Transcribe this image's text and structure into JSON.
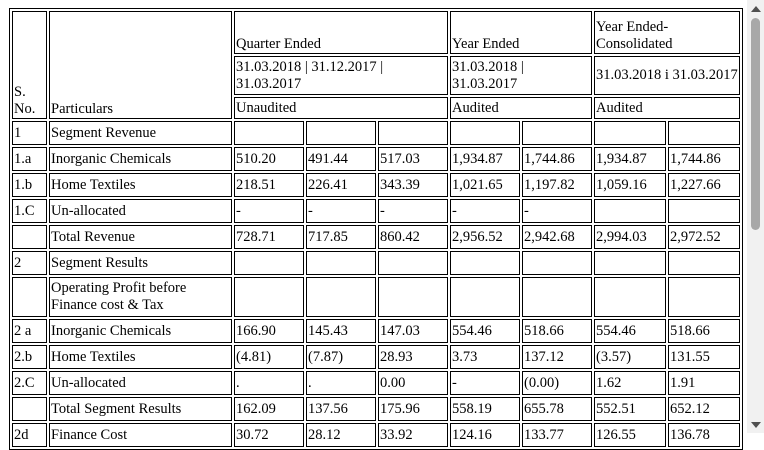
{
  "header": {
    "sno": "S. No.",
    "particulars": "Particulars",
    "quarter_ended": "Quarter Ended",
    "quarter_dates": "31.03.2018 | 31.12.2017 | 31.03.2017",
    "year_ended": "Year Ended",
    "year_dates": "31.03.2018 | 31.03.2017",
    "year_consol": "Year Ended-Consolidated",
    "consol_dates": "31.03.2018 i 31.03.2017",
    "unaudited": "Unaudited",
    "audited_1": "Audited",
    "audited_2": "Audited"
  },
  "rows": [
    {
      "sno": "1",
      "particular": "Segment Revenue",
      "cells": [
        "",
        "",
        "",
        "",
        "",
        "",
        ""
      ]
    },
    {
      "sno": "1.a",
      "particular": "Inorganic Chemicals",
      "cells": [
        "510.20",
        "491.44",
        "517.03",
        "1,934.87",
        "1,744.86",
        "1,934.87",
        "1,744.86"
      ]
    },
    {
      "sno": "1.b",
      "particular": "Home Textiles",
      "cells": [
        "218.51",
        "226.41",
        "343.39",
        "1,021.65",
        "1,197.82",
        "1,059.16",
        "1,227.66"
      ]
    },
    {
      "sno": "1.C",
      "particular": "Un-allocated",
      "cells": [
        "-",
        "-",
        "-",
        "-",
        "-",
        "",
        ""
      ]
    },
    {
      "sno": "",
      "particular": "Total Revenue",
      "cells": [
        "728.71",
        "717.85",
        "860.42",
        "2,956.52",
        "2,942.68",
        "2,994.03",
        "2,972.52"
      ]
    },
    {
      "sno": "2",
      "particular": "Segment Results",
      "cells": [
        "",
        "",
        "",
        "",
        "",
        "",
        ""
      ]
    },
    {
      "sno": "",
      "particular": "Operating Profit before Finance cost & Tax",
      "cells": [
        "",
        "",
        "",
        "",
        "",
        "",
        ""
      ],
      "tall": true
    },
    {
      "sno": "2 a",
      "particular": "Inorganic Chemicals",
      "cells": [
        "166.90",
        "145.43",
        "147.03",
        "554.46",
        "518.66",
        "554.46",
        "518.66"
      ]
    },
    {
      "sno": "2.b",
      "particular": "Home Textiles",
      "cells": [
        "(4.81)",
        "(7.87)",
        "28.93",
        "3.73",
        "137.12",
        "(3.57)",
        "131.55"
      ]
    },
    {
      "sno": "2.C",
      "particular": "Un-allocated",
      "cells": [
        ".",
        ".",
        "0.00",
        "-",
        "(0.00)",
        "1.62",
        "1.91"
      ]
    },
    {
      "sno": "",
      "particular": "Total Segment Results",
      "cells": [
        "162.09",
        "137.56",
        "175.96",
        "558.19",
        "655.78",
        "552.51",
        "652.12"
      ]
    },
    {
      "sno": "2d",
      "particular": "Finance Cost",
      "cells": [
        "30.72",
        "28.12",
        "33.92",
        "124.16",
        "133.77",
        "126.55",
        "136.78"
      ]
    }
  ]
}
